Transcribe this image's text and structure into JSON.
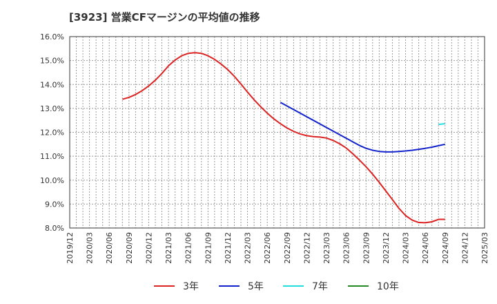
{
  "chart_data": {
    "type": "line",
    "title": "[3923]  営業CFマージンの平均値の推移",
    "xlabel": "",
    "ylabel": "",
    "ylim": [
      8.0,
      16.0
    ],
    "y_ticks": [
      "8.0%",
      "9.0%",
      "10.0%",
      "11.0%",
      "12.0%",
      "13.0%",
      "14.0%",
      "15.0%",
      "16.0%"
    ],
    "x_ticks": [
      "2019/12",
      "2020/03",
      "2020/06",
      "2020/09",
      "2020/12",
      "2021/03",
      "2021/06",
      "2021/09",
      "2021/12",
      "2022/03",
      "2022/06",
      "2022/09",
      "2022/12",
      "2023/03",
      "2023/06",
      "2023/09",
      "2023/12",
      "2024/03",
      "2024/06",
      "2024/09",
      "2024/12",
      "2025/03"
    ],
    "x_range": [
      "2019/12",
      "2025/03"
    ],
    "grid": true,
    "legend_position": "bottom",
    "series": [
      {
        "name": "3年",
        "color": "#dd2222",
        "x": [
          "2020/08",
          "2020/09",
          "2020/10",
          "2020/11",
          "2020/12",
          "2021/01",
          "2021/02",
          "2021/03",
          "2021/04",
          "2021/05",
          "2021/06",
          "2021/07",
          "2021/08",
          "2021/09",
          "2021/10",
          "2021/11",
          "2021/12",
          "2022/01",
          "2022/02",
          "2022/03",
          "2022/04",
          "2022/05",
          "2022/06",
          "2022/07",
          "2022/08",
          "2022/09",
          "2022/10",
          "2022/11",
          "2022/12",
          "2023/01",
          "2023/02",
          "2023/03",
          "2023/04",
          "2023/05",
          "2023/06",
          "2023/07",
          "2023/08",
          "2023/09",
          "2023/10",
          "2023/11",
          "2023/12",
          "2024/01",
          "2024/02",
          "2024/03",
          "2024/04",
          "2024/05",
          "2024/06",
          "2024/07",
          "2024/08",
          "2024/09"
        ],
        "values": [
          13.38,
          13.46,
          13.58,
          13.74,
          13.94,
          14.18,
          14.46,
          14.78,
          15.02,
          15.2,
          15.3,
          15.33,
          15.3,
          15.2,
          15.05,
          14.85,
          14.62,
          14.34,
          14.02,
          13.68,
          13.36,
          13.07,
          12.8,
          12.56,
          12.36,
          12.18,
          12.04,
          11.93,
          11.86,
          11.82,
          11.8,
          11.76,
          11.66,
          11.52,
          11.34,
          11.1,
          10.84,
          10.56,
          10.25,
          9.91,
          9.55,
          9.19,
          8.82,
          8.52,
          8.33,
          8.23,
          8.22,
          8.26,
          8.36,
          8.36
        ]
      },
      {
        "name": "5年",
        "color": "#1122cc",
        "x": [
          "2022/08",
          "2022/09",
          "2022/10",
          "2022/11",
          "2022/12",
          "2023/01",
          "2023/02",
          "2023/03",
          "2023/04",
          "2023/05",
          "2023/06",
          "2023/07",
          "2023/08",
          "2023/09",
          "2023/10",
          "2023/11",
          "2023/12",
          "2024/01",
          "2024/02",
          "2024/03",
          "2024/04",
          "2024/05",
          "2024/06",
          "2024/07",
          "2024/08",
          "2024/09"
        ],
        "values": [
          13.25,
          13.1,
          12.95,
          12.8,
          12.65,
          12.5,
          12.35,
          12.2,
          12.05,
          11.9,
          11.75,
          11.6,
          11.45,
          11.33,
          11.25,
          11.2,
          11.18,
          11.18,
          11.2,
          11.22,
          11.25,
          11.29,
          11.33,
          11.38,
          11.44,
          11.5
        ]
      },
      {
        "name": "7年",
        "color": "#22dddd",
        "x": [
          "2024/08",
          "2024/09"
        ],
        "values": [
          12.33,
          12.36
        ]
      },
      {
        "name": "10年",
        "color": "#228822",
        "x": [],
        "values": []
      }
    ]
  }
}
